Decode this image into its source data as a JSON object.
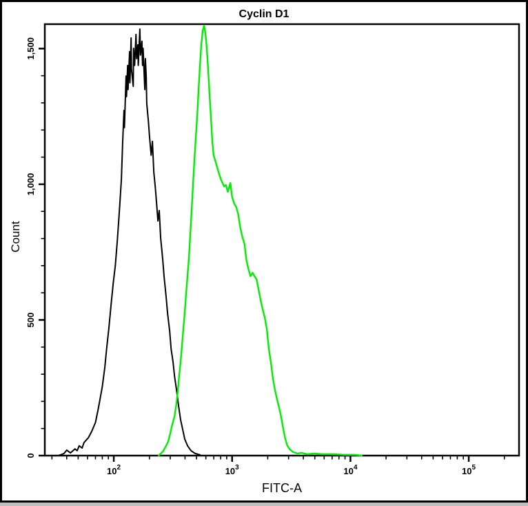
{
  "window": {
    "background": "#ffffff",
    "border_color": "#000000"
  },
  "chart_data": {
    "type": "line",
    "subtype": "flow-cytometry-histogram",
    "title": "Cyclin D1",
    "xlabel": "FITC-A",
    "ylabel": "Count",
    "grid": false,
    "legend": "none",
    "x_scale": "log",
    "xlim_log": [
      1.417,
      5.425
    ],
    "ylim": [
      0,
      1590
    ],
    "x_axis": {
      "major_ticks": [
        {
          "value": 100,
          "base": "10",
          "exp": "2"
        },
        {
          "value": 1000,
          "base": "10",
          "exp": "3"
        },
        {
          "value": 10000,
          "base": "10",
          "exp": "4"
        },
        {
          "value": 100000,
          "base": "10",
          "exp": "5"
        }
      ],
      "minor_tick_pattern": "log-decades-2-to-9"
    },
    "y_axis": {
      "major_ticks": [
        {
          "value": 0,
          "label": "0"
        },
        {
          "value": 500,
          "label": "500"
        },
        {
          "value": 1000,
          "label": "1,000"
        },
        {
          "value": 1500,
          "label": "1,500"
        }
      ],
      "minor_step": 100
    },
    "series": [
      {
        "name": "black-trace",
        "color": "#000000",
        "stroke_width": 2,
        "points": [
          [
            34,
            0
          ],
          [
            38,
            8
          ],
          [
            40,
            20
          ],
          [
            43,
            10
          ],
          [
            47,
            25
          ],
          [
            49,
            18
          ],
          [
            51,
            36
          ],
          [
            54,
            28
          ],
          [
            56,
            48
          ],
          [
            61,
            66
          ],
          [
            65,
            89
          ],
          [
            70,
            122
          ],
          [
            74,
            173
          ],
          [
            80,
            254
          ],
          [
            84,
            326
          ],
          [
            87,
            394
          ],
          [
            91,
            471
          ],
          [
            95,
            560
          ],
          [
            99,
            636
          ],
          [
            103,
            700
          ],
          [
            107,
            789
          ],
          [
            110,
            865
          ],
          [
            113,
            941
          ],
          [
            116,
            1018
          ],
          [
            119,
            1158
          ],
          [
            122,
            1272
          ],
          [
            123,
            1209
          ],
          [
            127,
            1399
          ],
          [
            128,
            1323
          ],
          [
            131,
            1438
          ],
          [
            132,
            1349
          ],
          [
            136,
            1489
          ],
          [
            137,
            1374
          ],
          [
            140,
            1539
          ],
          [
            141,
            1425
          ],
          [
            146,
            1361
          ],
          [
            147,
            1501
          ],
          [
            150,
            1438
          ],
          [
            154,
            1552
          ],
          [
            156,
            1463
          ],
          [
            160,
            1514
          ],
          [
            161,
            1438
          ],
          [
            166,
            1572
          ],
          [
            168,
            1476
          ],
          [
            173,
            1527
          ],
          [
            175,
            1438
          ],
          [
            177,
            1501
          ],
          [
            183,
            1349
          ],
          [
            185,
            1463
          ],
          [
            188,
            1399
          ],
          [
            190,
            1298
          ],
          [
            196,
            1234
          ],
          [
            201,
            1170
          ],
          [
            207,
            1107
          ],
          [
            212,
            1158
          ],
          [
            218,
            1043
          ],
          [
            224,
            992
          ],
          [
            230,
            929
          ],
          [
            236,
            865
          ],
          [
            242,
            903
          ],
          [
            249,
            801
          ],
          [
            259,
            725
          ],
          [
            266,
            661
          ],
          [
            277,
            585
          ],
          [
            285,
            522
          ],
          [
            297,
            458
          ],
          [
            305,
            394
          ],
          [
            317,
            344
          ],
          [
            326,
            293
          ],
          [
            339,
            242
          ],
          [
            353,
            183
          ],
          [
            367,
            132
          ],
          [
            382,
            97
          ],
          [
            398,
            61
          ],
          [
            420,
            36
          ],
          [
            450,
            18
          ],
          [
            487,
            8
          ],
          [
            534,
            3
          ]
        ]
      },
      {
        "name": "green-trace",
        "color": "#00ee00",
        "stroke_width": 2.4,
        "points": [
          [
            240,
            0
          ],
          [
            246,
            5
          ],
          [
            260,
            15
          ],
          [
            273,
            31
          ],
          [
            288,
            51
          ],
          [
            298,
            76
          ],
          [
            309,
            107
          ],
          [
            326,
            145
          ],
          [
            338,
            191
          ],
          [
            348,
            239
          ],
          [
            357,
            293
          ],
          [
            368,
            351
          ],
          [
            378,
            412
          ],
          [
            388,
            473
          ],
          [
            399,
            534
          ],
          [
            409,
            600
          ],
          [
            421,
            667
          ],
          [
            432,
            733
          ],
          [
            443,
            814
          ],
          [
            455,
            903
          ],
          [
            467,
            997
          ],
          [
            480,
            1089
          ],
          [
            493,
            1170
          ],
          [
            507,
            1252
          ],
          [
            521,
            1349
          ],
          [
            535,
            1438
          ],
          [
            549,
            1514
          ],
          [
            564,
            1565
          ],
          [
            580,
            1585
          ],
          [
            595,
            1557
          ],
          [
            611,
            1501
          ],
          [
            627,
            1425
          ],
          [
            644,
            1336
          ],
          [
            662,
            1247
          ],
          [
            680,
            1158
          ],
          [
            698,
            1107
          ],
          [
            727,
            1081
          ],
          [
            755,
            1056
          ],
          [
            785,
            1031
          ],
          [
            813,
            1013
          ],
          [
            857,
            992
          ],
          [
            886,
            997
          ],
          [
            920,
            972
          ],
          [
            966,
            1005
          ],
          [
            1000,
            954
          ],
          [
            1041,
            929
          ],
          [
            1083,
            916
          ],
          [
            1127,
            890
          ],
          [
            1173,
            840
          ],
          [
            1220,
            806
          ],
          [
            1270,
            781
          ],
          [
            1321,
            720
          ],
          [
            1375,
            687
          ],
          [
            1430,
            661
          ],
          [
            1488,
            674
          ],
          [
            1548,
            661
          ],
          [
            1611,
            649
          ],
          [
            1676,
            611
          ],
          [
            1744,
            572
          ],
          [
            1814,
            539
          ],
          [
            1888,
            509
          ],
          [
            1964,
            466
          ],
          [
            2043,
            394
          ],
          [
            2126,
            344
          ],
          [
            2212,
            285
          ],
          [
            2301,
            242
          ],
          [
            2394,
            209
          ],
          [
            2491,
            178
          ],
          [
            2592,
            145
          ],
          [
            2697,
            102
          ],
          [
            2806,
            64
          ],
          [
            2919,
            38
          ],
          [
            3077,
            23
          ],
          [
            3285,
            13
          ],
          [
            3553,
            8
          ],
          [
            3885,
            10
          ],
          [
            4299,
            5
          ],
          [
            4955,
            8
          ],
          [
            5837,
            5
          ],
          [
            7171,
            5
          ],
          [
            8810,
            3
          ],
          [
            10824,
            3
          ],
          [
            12480,
            0
          ]
        ]
      }
    ]
  }
}
